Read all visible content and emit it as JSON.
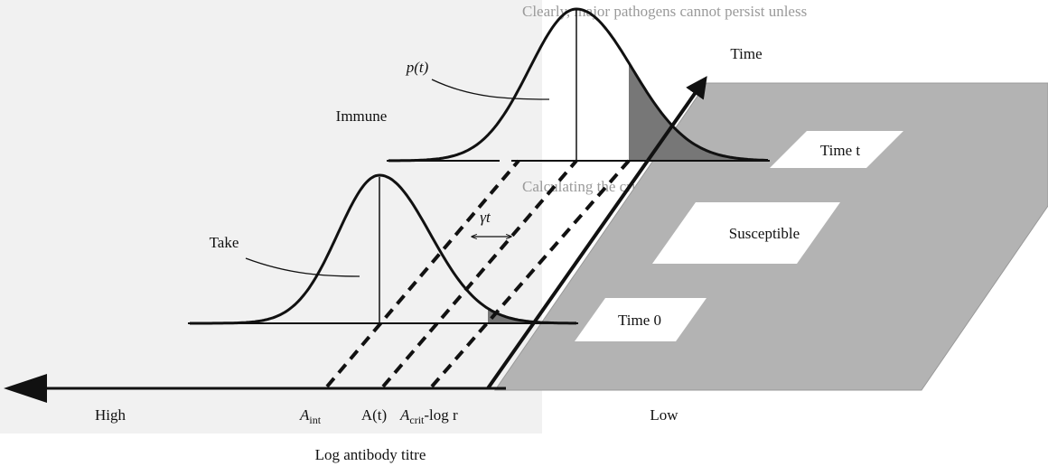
{
  "axis": {
    "title": "Log antibody titre",
    "high": "High",
    "low": "Low",
    "time": "Time"
  },
  "markers": {
    "a_int": {
      "base": "A",
      "sub": "int"
    },
    "a_t": "A(t)",
    "a_crit": {
      "base": "A",
      "sub": "crit",
      "suffix": "-log r"
    }
  },
  "labels": {
    "p_t": "p(t)",
    "immune": "Immune",
    "take": "Take",
    "gamma_t": "γt",
    "time_t": "Time t",
    "susceptible": "Susceptible",
    "time_0": "Time 0"
  },
  "background_text": [
    "Clearly, major pathogens cannot persist unless",
    "Calculating the critical intervaccination interval"
  ]
}
